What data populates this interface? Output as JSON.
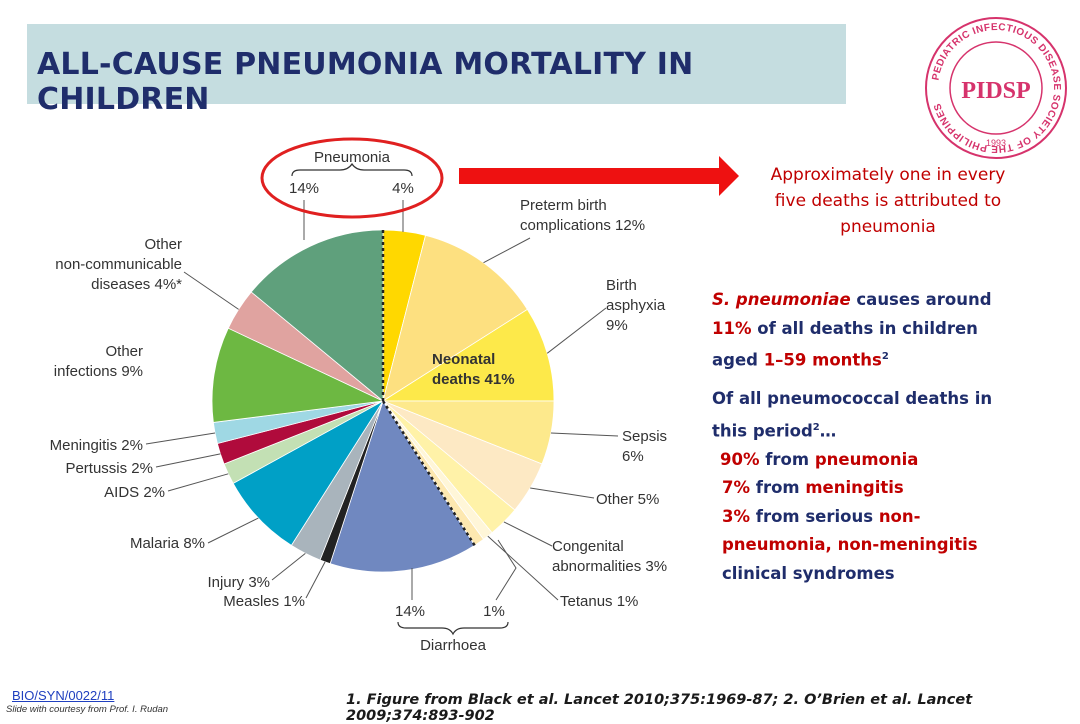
{
  "title": "ALL-CAUSE PNEUMONIA MORTALITY IN CHILDREN",
  "logo": {
    "letters": "PIDSP",
    "ring_text": "PEDIATRIC INFECTIOUS DISEASE SOCIETY OF THE PHILIPPINES",
    "year": "1993",
    "color": "#d6336c"
  },
  "callout": {
    "line1": "Approximately one in every",
    "line2": "five deaths is attributed to",
    "line3": "pneumonia"
  },
  "info": {
    "p1": {
      "species": "S. pneumoniae",
      "t1": " causes around",
      "pct": "11%",
      "t2": " of all deaths in children",
      "t3": "aged ",
      "age": "1–59 months",
      "sup": "2"
    },
    "p2": {
      "line1": "Of all pneumococcal deaths in",
      "line2a": "this period",
      "sup": "2",
      "line2b": "…"
    },
    "b1": {
      "pct": "90%",
      "mid": " from ",
      "cause": "pneumonia"
    },
    "b2": {
      "pct": "7%",
      "mid": " from ",
      "cause": "meningitis"
    },
    "b3": {
      "pct": "3%",
      "mid": " from serious ",
      "cause1": "non-",
      "cause2": "pneumonia, non-meningitis",
      "tail": "clinical syndromes"
    }
  },
  "footer": {
    "code": "BIO/SYN/0022/11",
    "credit": "Slide with courtesy from Prof. I. Rudan",
    "refs": "1. Figure from Black et al. Lancet 2010;375:1969-87; 2. O’Brien et al. Lancet 2009;374:893-902"
  },
  "chart_data": {
    "type": "pie",
    "center_label": [
      "Neonatal",
      "deaths 41%"
    ],
    "slices": [
      {
        "name": "Pneumonia (neonatal)",
        "value": 4,
        "color": "#ffd800",
        "group": "neonatal"
      },
      {
        "name": "Preterm birth complications",
        "value": 12,
        "color": "#fde080",
        "group": "neonatal"
      },
      {
        "name": "Birth asphyxia",
        "value": 9,
        "color": "#fde94a",
        "group": "neonatal"
      },
      {
        "name": "Sepsis",
        "value": 6,
        "color": "#fde98c",
        "group": "neonatal"
      },
      {
        "name": "Other",
        "value": 5,
        "color": "#fde9c4",
        "group": "neonatal"
      },
      {
        "name": "Congenital abnormalities",
        "value": 3,
        "color": "#fff2a8",
        "group": "neonatal"
      },
      {
        "name": "Tetanus",
        "value": 1,
        "color": "#fff6d8",
        "group": "neonatal"
      },
      {
        "name": "Diarrhoea (neonatal)",
        "value": 1,
        "color": "#fde8b0",
        "group": "neonatal"
      },
      {
        "name": "Diarrhoea",
        "value": 14,
        "color": "#7088c0",
        "group": "postneonatal"
      },
      {
        "name": "Measles",
        "value": 1,
        "color": "#222222",
        "group": "postneonatal"
      },
      {
        "name": "Injury",
        "value": 3,
        "color": "#a9b4bc",
        "group": "postneonatal"
      },
      {
        "name": "Malaria",
        "value": 8,
        "color": "#00a0c6",
        "group": "postneonatal"
      },
      {
        "name": "AIDS",
        "value": 2,
        "color": "#c3e0b4",
        "group": "postneonatal"
      },
      {
        "name": "Pertussis",
        "value": 2,
        "color": "#b00b3c",
        "group": "postneonatal"
      },
      {
        "name": "Meningitis",
        "value": 2,
        "color": "#9fd8e4",
        "group": "postneonatal"
      },
      {
        "name": "Other infections",
        "value": 9,
        "color": "#6db842",
        "group": "postneonatal"
      },
      {
        "name": "Other non-communicable diseases",
        "value": 4,
        "color": "#e0a3a0",
        "group": "postneonatal"
      },
      {
        "name": "Pneumonia",
        "value": 14,
        "color": "#5fa07c",
        "group": "postneonatal"
      }
    ],
    "labels": {
      "pneumonia": {
        "title": "Pneumonia",
        "left": "14%",
        "right": "4%"
      },
      "preterm": [
        "Preterm birth",
        "complications 12%"
      ],
      "asphyxia": [
        "Birth",
        "asphyxia",
        "9%"
      ],
      "sepsis": [
        "Sepsis",
        "6%"
      ],
      "other5": [
        "Other 5%"
      ],
      "congenital": [
        "Congenital",
        "abnormalities 3%"
      ],
      "tetanus": [
        "Tetanus 1%"
      ],
      "diarrhoea": {
        "title": "Diarrhoea",
        "left": "14%",
        "right": "1%"
      },
      "measles": [
        "Measles 1%"
      ],
      "injury": [
        "Injury 3%"
      ],
      "malaria": [
        "Malaria 8%"
      ],
      "aids": [
        "AIDS 2%"
      ],
      "pertussis": [
        "Pertussis 2%"
      ],
      "meningitis": [
        "Meningitis 2%"
      ],
      "otherinf": [
        "Other",
        "infections 9%"
      ],
      "ncd": [
        "Other",
        "non-communicable",
        "diseases 4%*"
      ]
    }
  }
}
